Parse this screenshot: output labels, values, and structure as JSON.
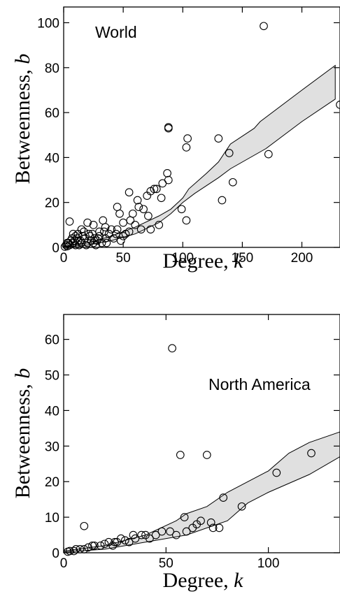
{
  "chart_data": [
    {
      "type": "scatter",
      "annotation": "World",
      "xlabel": "Degree, ",
      "xlabel_var": "k",
      "ylabel": "Betweenness, ",
      "ylabel_var": "b",
      "xlim": [
        0,
        232
      ],
      "ylim": [
        0,
        107
      ],
      "xticks": [
        0,
        50,
        100,
        150,
        200
      ],
      "yticks": [
        0,
        20,
        40,
        60,
        80,
        100
      ],
      "points": [
        [
          168,
          98.5
        ],
        [
          232,
          63.5
        ],
        [
          88,
          53.5
        ],
        [
          88,
          53
        ],
        [
          104,
          48.5
        ],
        [
          103,
          44.5
        ],
        [
          130,
          48.5
        ],
        [
          139,
          42
        ],
        [
          172,
          41.5
        ],
        [
          142,
          29
        ],
        [
          133,
          21
        ],
        [
          87,
          33
        ],
        [
          88,
          30
        ],
        [
          83,
          28.5
        ],
        [
          76,
          26
        ],
        [
          78,
          26
        ],
        [
          73,
          25
        ],
        [
          55,
          24.5
        ],
        [
          62,
          21
        ],
        [
          58,
          15
        ],
        [
          67,
          17
        ],
        [
          45,
          18
        ],
        [
          47,
          15
        ],
        [
          70,
          23
        ],
        [
          82,
          22
        ],
        [
          99,
          17
        ],
        [
          80,
          10
        ],
        [
          103,
          12
        ],
        [
          5,
          11.5
        ],
        [
          20,
          11
        ],
        [
          25,
          10
        ],
        [
          33,
          12
        ],
        [
          35,
          9
        ],
        [
          40,
          8
        ],
        [
          50,
          11
        ],
        [
          60,
          10
        ],
        [
          65,
          8
        ],
        [
          73,
          8
        ],
        [
          55,
          7
        ],
        [
          45,
          8
        ],
        [
          30,
          7
        ],
        [
          15,
          8
        ],
        [
          10,
          5
        ],
        [
          12,
          3
        ],
        [
          8,
          2
        ],
        [
          5,
          1
        ],
        [
          3,
          0.5
        ],
        [
          2,
          1
        ],
        [
          7,
          4
        ],
        [
          18,
          4
        ],
        [
          22,
          5
        ],
        [
          28,
          3
        ],
        [
          30,
          5
        ],
        [
          35,
          4
        ],
        [
          38,
          6
        ],
        [
          42,
          4
        ],
        [
          50,
          5
        ],
        [
          15,
          2
        ],
        [
          20,
          2
        ],
        [
          25,
          2
        ],
        [
          10,
          1
        ],
        [
          4,
          2
        ],
        [
          6,
          3
        ],
        [
          9,
          3
        ],
        [
          11,
          4
        ],
        [
          13,
          1
        ],
        [
          16,
          5
        ],
        [
          24,
          6
        ],
        [
          27,
          1
        ],
        [
          32,
          2
        ],
        [
          36,
          2
        ],
        [
          1,
          0.3
        ],
        [
          14,
          3
        ],
        [
          19,
          1
        ],
        [
          8,
          6
        ],
        [
          17,
          7
        ],
        [
          23,
          3
        ],
        [
          26,
          4
        ],
        [
          21,
          6
        ],
        [
          3,
          2
        ],
        [
          12,
          6
        ],
        [
          29,
          4
        ],
        [
          34,
          7
        ],
        [
          44,
          6
        ],
        [
          48,
          3
        ],
        [
          52,
          6
        ],
        [
          56,
          12
        ],
        [
          63,
          18
        ],
        [
          71,
          14
        ]
      ],
      "band_upper": [
        [
          0,
          0.5
        ],
        [
          20,
          2
        ],
        [
          40,
          5
        ],
        [
          60,
          9
        ],
        [
          80,
          14
        ],
        [
          90,
          17
        ],
        [
          100,
          22
        ],
        [
          105,
          26
        ],
        [
          120,
          33
        ],
        [
          130,
          38
        ],
        [
          140,
          46
        ],
        [
          160,
          53
        ],
        [
          165,
          56
        ],
        [
          200,
          70
        ],
        [
          228,
          81
        ]
      ],
      "band_lower": [
        [
          228,
          66
        ],
        [
          200,
          56
        ],
        [
          170,
          44
        ],
        [
          140,
          35
        ],
        [
          130,
          31
        ],
        [
          110,
          24
        ],
        [
          100,
          20
        ],
        [
          90,
          15
        ],
        [
          80,
          11
        ],
        [
          60,
          6
        ],
        [
          40,
          3
        ],
        [
          20,
          1
        ],
        [
          0,
          0.2
        ]
      ]
    },
    {
      "type": "scatter",
      "annotation": "North America",
      "xlabel": "Degree, ",
      "xlabel_var": "k",
      "ylabel": "Betweenness, ",
      "ylabel_var": "b",
      "xlim": [
        0,
        135
      ],
      "ylim": [
        0,
        67
      ],
      "xticks": [
        0,
        50,
        100
      ],
      "yticks": [
        0,
        10,
        20,
        30,
        40,
        50,
        60
      ],
      "points": [
        [
          53,
          57.5
        ],
        [
          57,
          27.5
        ],
        [
          70,
          27.5
        ],
        [
          121,
          28
        ],
        [
          104,
          22.5
        ],
        [
          78,
          15.5
        ],
        [
          87,
          13
        ],
        [
          59,
          10
        ],
        [
          10,
          7.5
        ],
        [
          72,
          8.5
        ],
        [
          76,
          7
        ],
        [
          73,
          7
        ],
        [
          52,
          6
        ],
        [
          55,
          5
        ],
        [
          63,
          7
        ],
        [
          65,
          8
        ],
        [
          45,
          5
        ],
        [
          40,
          5
        ],
        [
          35,
          4
        ],
        [
          30,
          3.5
        ],
        [
          25,
          3
        ],
        [
          20,
          2.5
        ],
        [
          15,
          2
        ],
        [
          12,
          1.5
        ],
        [
          8,
          1
        ],
        [
          5,
          0.5
        ],
        [
          3,
          0.5
        ],
        [
          2,
          0.3
        ],
        [
          10,
          1
        ],
        [
          14,
          2
        ],
        [
          18,
          2
        ],
        [
          22,
          3
        ],
        [
          28,
          4
        ],
        [
          32,
          3
        ],
        [
          38,
          5
        ],
        [
          42,
          4
        ],
        [
          48,
          6
        ],
        [
          60,
          6
        ],
        [
          67,
          9
        ],
        [
          24,
          2
        ],
        [
          26,
          3
        ],
        [
          34,
          5
        ],
        [
          6,
          1
        ]
      ],
      "band_upper": [
        [
          0,
          0.5
        ],
        [
          20,
          2
        ],
        [
          40,
          5
        ],
        [
          55,
          9
        ],
        [
          60,
          11
        ],
        [
          70,
          13
        ],
        [
          80,
          17
        ],
        [
          100,
          23
        ],
        [
          110,
          28
        ],
        [
          120,
          31
        ],
        [
          135,
          34
        ]
      ],
      "band_lower": [
        [
          135,
          27
        ],
        [
          120,
          22
        ],
        [
          100,
          17
        ],
        [
          90,
          14
        ],
        [
          80,
          9
        ],
        [
          70,
          7
        ],
        [
          60,
          5
        ],
        [
          40,
          3
        ],
        [
          20,
          1
        ],
        [
          0,
          0.2
        ]
      ]
    }
  ]
}
